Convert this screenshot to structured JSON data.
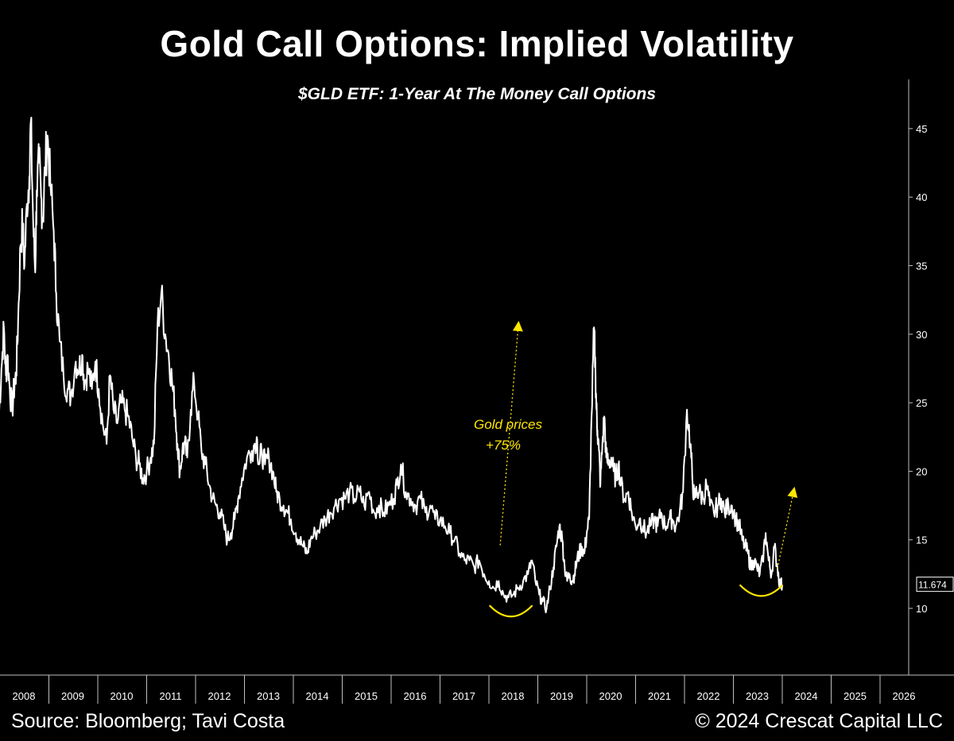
{
  "header": {
    "title": "Gold Call Options: Implied Volatility",
    "subtitle": "$GLD ETF: 1-Year At The Money Call Options"
  },
  "footer": {
    "source": "Source: Bloomberg; Tavi Costa",
    "copyright": "© 2024 Crescat Capital LLC"
  },
  "colors": {
    "background": "#000000",
    "line": "#ffffff",
    "annotation": "#ffe600",
    "axis": "#bfbfbf"
  },
  "chart_data": {
    "type": "line",
    "title": "Gold Call Options: Implied Volatility",
    "subtitle": "$GLD ETF: 1-Year At The Money Call Options",
    "xlabel": "",
    "ylabel": "",
    "xlim": [
      2008,
      2026
    ],
    "ylim": [
      5,
      47
    ],
    "x_ticks": [
      2008,
      2009,
      2010,
      2011,
      2012,
      2013,
      2014,
      2015,
      2016,
      2017,
      2018,
      2019,
      2020,
      2021,
      2022,
      2023,
      2024,
      2025,
      2026
    ],
    "y_ticks": [
      10,
      15,
      20,
      25,
      30,
      35,
      40,
      45
    ],
    "grid": false,
    "last_value_label": "11.674",
    "series": [
      {
        "name": "1-Year ATM Call Implied Volatility",
        "x": [
          2007.97,
          2008.03,
          2008.08,
          2008.12,
          2008.15,
          2008.2,
          2008.25,
          2008.3,
          2008.33,
          2008.37,
          2008.42,
          2008.46,
          2008.5,
          2008.55,
          2008.6,
          2008.63,
          2008.68,
          2008.72,
          2008.75,
          2008.8,
          2008.84,
          2008.88,
          2008.92,
          2008.97,
          2009.03,
          2009.1,
          2009.15,
          2009.22,
          2009.3,
          2009.38,
          2009.45,
          2009.55,
          2009.62,
          2009.68,
          2009.73,
          2009.8,
          2009.88,
          2009.95,
          2010.02,
          2010.1,
          2010.18,
          2010.25,
          2010.32,
          2010.4,
          2010.47,
          2010.55,
          2010.62,
          2010.7,
          2010.78,
          2010.85,
          2010.92,
          2011.0,
          2011.08,
          2011.15,
          2011.22,
          2011.3,
          2011.38,
          2011.45,
          2011.52,
          2011.58,
          2011.63,
          2011.68,
          2011.73,
          2011.78,
          2011.83,
          2011.9,
          2011.97,
          2012.05,
          2012.12,
          2012.2,
          2012.28,
          2012.35,
          2012.42,
          2012.5,
          2012.58,
          2012.65,
          2012.72,
          2012.8,
          2012.87,
          2012.95,
          2013.05,
          2013.15,
          2013.25,
          2013.3,
          2013.35,
          2013.42,
          2013.5,
          2013.58,
          2013.65,
          2013.72,
          2013.8,
          2013.88,
          2013.95,
          2014.05,
          2014.12,
          2014.2,
          2014.28,
          2014.35,
          2014.45,
          2014.55,
          2014.65,
          2014.75,
          2014.85,
          2014.95,
          2015.05,
          2015.15,
          2015.25,
          2015.35,
          2015.45,
          2015.55,
          2015.65,
          2015.75,
          2015.85,
          2015.95,
          2016.05,
          2016.12,
          2016.2,
          2016.3,
          2016.4,
          2016.5,
          2016.6,
          2016.7,
          2016.8,
          2016.9,
          2017.0,
          2017.1,
          2017.2,
          2017.3,
          2017.4,
          2017.5,
          2017.6,
          2017.7,
          2017.8,
          2017.9,
          2018.0,
          2018.1,
          2018.2,
          2018.3,
          2018.4,
          2018.5,
          2018.6,
          2018.7,
          2018.8,
          2018.88,
          2018.95,
          2019.03,
          2019.1,
          2019.18,
          2019.25,
          2019.32,
          2019.38,
          2019.44,
          2019.5,
          2019.55,
          2019.6,
          2019.65,
          2019.7,
          2019.75,
          2019.8,
          2019.85,
          2019.9,
          2019.95,
          2020.0,
          2020.05,
          2020.1,
          2020.15,
          2020.18,
          2020.2,
          2020.22,
          2020.25,
          2020.28,
          2020.32,
          2020.36,
          2020.4,
          2020.45,
          2020.5,
          2020.55,
          2020.6,
          2020.65,
          2020.7,
          2020.78,
          2020.85,
          2020.92,
          2021.0,
          2021.08,
          2021.15,
          2021.22,
          2021.3,
          2021.38,
          2021.45,
          2021.52,
          2021.6,
          2021.68,
          2021.75,
          2021.82,
          2021.9,
          2021.97,
          2022.05,
          2022.12,
          2022.16,
          2022.2,
          2022.25,
          2022.3,
          2022.38,
          2022.45,
          2022.52,
          2022.6,
          2022.68,
          2022.75,
          2022.82,
          2022.9,
          2022.97,
          2023.05,
          2023.12,
          2023.18,
          2023.24,
          2023.3,
          2023.36,
          2023.42,
          2023.48,
          2023.54,
          2023.6,
          2023.66,
          2023.72,
          2023.78,
          2023.84,
          2023.9,
          2023.95,
          2024.0
        ],
        "values": [
          23.5,
          27.5,
          30.5,
          27.0,
          28.5,
          26.0,
          24.5,
          26.5,
          27.0,
          31.0,
          36.5,
          38.0,
          35.0,
          39.5,
          41.5,
          45.5,
          38.0,
          34.5,
          40.5,
          42.5,
          40.0,
          38.5,
          42.0,
          44.5,
          41.0,
          37.5,
          33.0,
          29.5,
          27.0,
          26.0,
          25.5,
          28.0,
          27.5,
          28.5,
          26.5,
          27.5,
          26.0,
          28.0,
          26.0,
          23.5,
          22.0,
          27.0,
          24.5,
          23.5,
          25.0,
          24.5,
          24.0,
          22.5,
          21.0,
          20.5,
          19.5,
          20.0,
          21.0,
          22.0,
          30.5,
          33.0,
          30.0,
          28.5,
          26.5,
          24.5,
          22.0,
          20.0,
          21.5,
          22.0,
          21.0,
          24.5,
          26.5,
          24.0,
          21.5,
          20.5,
          19.0,
          18.0,
          17.5,
          17.0,
          16.0,
          15.0,
          15.5,
          16.5,
          18.0,
          19.5,
          21.0,
          21.5,
          22.5,
          20.5,
          21.5,
          20.5,
          21.0,
          20.0,
          18.5,
          18.0,
          17.5,
          17.0,
          16.5,
          15.5,
          15.0,
          14.5,
          14.0,
          15.0,
          15.5,
          16.0,
          16.5,
          17.0,
          17.5,
          18.0,
          18.0,
          18.5,
          18.0,
          18.5,
          17.5,
          18.5,
          17.0,
          17.5,
          17.0,
          17.5,
          18.0,
          19.0,
          20.5,
          18.5,
          18.0,
          17.5,
          18.0,
          17.0,
          17.5,
          16.5,
          16.5,
          16.0,
          15.5,
          15.0,
          14.0,
          13.5,
          13.5,
          13.0,
          13.5,
          12.5,
          12.0,
          11.5,
          12.0,
          11.0,
          10.8,
          11.0,
          11.5,
          12.0,
          12.5,
          13.5,
          12.0,
          11.0,
          10.5,
          10.0,
          11.5,
          13.0,
          14.5,
          16.0,
          15.0,
          13.0,
          12.0,
          12.5,
          12.0,
          12.5,
          13.5,
          14.0,
          14.5,
          14.0,
          15.5,
          16.5,
          24.0,
          30.5,
          27.0,
          24.5,
          23.0,
          21.5,
          19.0,
          22.0,
          24.0,
          21.0,
          20.5,
          21.0,
          20.0,
          19.5,
          20.5,
          19.0,
          18.0,
          18.5,
          17.0,
          16.0,
          16.5,
          16.0,
          15.5,
          16.0,
          16.5,
          16.0,
          17.0,
          16.0,
          16.5,
          16.5,
          16.0,
          17.0,
          18.5,
          24.5,
          22.0,
          19.5,
          18.0,
          18.5,
          18.5,
          18.0,
          19.0,
          17.5,
          17.0,
          17.5,
          18.0,
          17.0,
          17.5,
          17.5,
          16.5,
          16.0,
          15.0,
          14.5,
          14.0,
          13.0,
          13.5,
          13.0,
          12.5,
          13.5,
          15.5,
          13.5,
          12.5,
          14.5,
          13.0,
          11.8,
          11.7
        ]
      }
    ],
    "annotations": [
      {
        "text_line1": "Gold prices",
        "text_line2": "+75%",
        "type": "label"
      },
      {
        "type": "dotted-arrow",
        "from": [
          2018.23,
          14.6
        ],
        "to": [
          2018.6,
          30.6
        ]
      },
      {
        "type": "dotted-arrow",
        "from": [
          2023.9,
          12.9
        ],
        "to": [
          2024.23,
          18.5
        ]
      },
      {
        "type": "smile",
        "center": [
          2018.45,
          10.1
        ]
      },
      {
        "type": "smile",
        "center": [
          2023.57,
          11.6
        ]
      }
    ]
  }
}
